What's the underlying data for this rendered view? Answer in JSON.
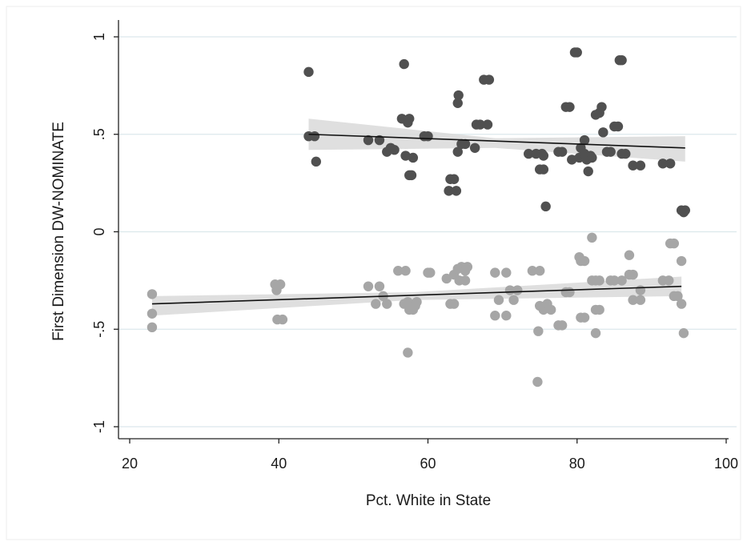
{
  "chart_data": {
    "type": "scatter",
    "title": "",
    "xlabel": "Pct. White in State",
    "ylabel": "First Dimension DW-NOMINATE",
    "xlim": [
      19,
      101
    ],
    "ylim": [
      -1.05,
      1.05
    ],
    "xticks": [
      20,
      40,
      60,
      80,
      100
    ],
    "xtick_labels": [
      "20",
      "40",
      "60",
      "80",
      "100"
    ],
    "yticks": [
      -1,
      -0.5,
      0,
      0.5,
      1
    ],
    "ytick_labels": [
      "-1",
      "-.5",
      "0",
      ".5",
      "1"
    ],
    "grid": "horizontal",
    "legend": "none",
    "colors": {
      "series_1": "#505050",
      "series_2": "#a6a6a6",
      "fit_line": "#111111",
      "ci_band": "#d9d9d9",
      "grid": "#dce8ec"
    },
    "series": [
      {
        "points": [
          [
            44,
            0.82
          ],
          [
            44,
            0.49
          ],
          [
            44.8,
            0.49
          ],
          [
            45,
            0.36
          ],
          [
            52,
            0.47
          ],
          [
            53.5,
            0.47
          ],
          [
            54.5,
            0.41
          ],
          [
            55,
            0.43
          ],
          [
            55.5,
            0.42
          ],
          [
            56.5,
            0.58
          ],
          [
            56.8,
            0.86
          ],
          [
            57,
            0.39
          ],
          [
            57.3,
            0.56
          ],
          [
            57.5,
            0.58
          ],
          [
            57.5,
            0.29
          ],
          [
            57.8,
            0.29
          ],
          [
            58,
            0.38
          ],
          [
            59.5,
            0.49
          ],
          [
            60,
            0.49
          ],
          [
            62.8,
            0.21
          ],
          [
            63,
            0.27
          ],
          [
            63.5,
            0.27
          ],
          [
            63.8,
            0.21
          ],
          [
            64,
            0.41
          ],
          [
            64,
            0.66
          ],
          [
            64.1,
            0.7
          ],
          [
            64.5,
            0.45
          ],
          [
            65,
            0.45
          ],
          [
            66.3,
            0.43
          ],
          [
            66.5,
            0.55
          ],
          [
            67,
            0.55
          ],
          [
            67.5,
            0.78
          ],
          [
            68,
            0.55
          ],
          [
            68.2,
            0.78
          ],
          [
            73.5,
            0.4
          ],
          [
            74.5,
            0.4
          ],
          [
            75,
            0.32
          ],
          [
            75.3,
            0.4
          ],
          [
            75.5,
            0.32
          ],
          [
            75.5,
            0.39
          ],
          [
            75.8,
            0.13
          ],
          [
            77.5,
            0.41
          ],
          [
            78,
            0.41
          ],
          [
            78.5,
            0.64
          ],
          [
            79,
            0.64
          ],
          [
            79.3,
            0.37
          ],
          [
            79.7,
            0.92
          ],
          [
            80,
            0.92
          ],
          [
            80.3,
            0.38
          ],
          [
            80.5,
            0.43
          ],
          [
            81,
            0.47
          ],
          [
            81,
            0.4
          ],
          [
            81.3,
            0.37
          ],
          [
            81.5,
            0.31
          ],
          [
            81.8,
            0.39
          ],
          [
            82,
            0.38
          ],
          [
            82.5,
            0.6
          ],
          [
            83,
            0.61
          ],
          [
            83.3,
            0.64
          ],
          [
            83.5,
            0.51
          ],
          [
            84,
            0.41
          ],
          [
            84.5,
            0.41
          ],
          [
            85,
            0.54
          ],
          [
            85.5,
            0.54
          ],
          [
            85.7,
            0.88
          ],
          [
            86,
            0.88
          ],
          [
            86,
            0.4
          ],
          [
            86.5,
            0.4
          ],
          [
            87.5,
            0.34
          ],
          [
            88.5,
            0.34
          ],
          [
            91.5,
            0.35
          ],
          [
            92.5,
            0.35
          ],
          [
            94,
            0.11
          ],
          [
            94.3,
            0.1
          ],
          [
            94.5,
            0.11
          ]
        ],
        "fit": {
          "x": [
            44,
            94.5
          ],
          "y": [
            0.5,
            0.43
          ]
        },
        "ci": {
          "x": [
            44,
            69,
            94.5
          ],
          "upper": [
            0.58,
            0.48,
            0.49
          ],
          "lower": [
            0.42,
            0.43,
            0.36
          ]
        }
      },
      {
        "points": [
          [
            23,
            -0.32
          ],
          [
            23,
            -0.42
          ],
          [
            23,
            -0.49
          ],
          [
            39.5,
            -0.27
          ],
          [
            39.7,
            -0.3
          ],
          [
            40.2,
            -0.27
          ],
          [
            39.8,
            -0.45
          ],
          [
            40.5,
            -0.45
          ],
          [
            52,
            -0.28
          ],
          [
            53,
            -0.37
          ],
          [
            53.5,
            -0.28
          ],
          [
            54,
            -0.33
          ],
          [
            54.5,
            -0.37
          ],
          [
            56,
            -0.2
          ],
          [
            57,
            -0.2
          ],
          [
            56.8,
            -0.37
          ],
          [
            57.3,
            -0.36
          ],
          [
            57.5,
            -0.4
          ],
          [
            58,
            -0.4
          ],
          [
            58.3,
            -0.38
          ],
          [
            58.5,
            -0.36
          ],
          [
            57.3,
            -0.62
          ],
          [
            60,
            -0.21
          ],
          [
            60.3,
            -0.21
          ],
          [
            62.5,
            -0.24
          ],
          [
            63,
            -0.37
          ],
          [
            63.5,
            -0.37
          ],
          [
            63.5,
            -0.22
          ],
          [
            64,
            -0.19
          ],
          [
            64.2,
            -0.25
          ],
          [
            64.5,
            -0.18
          ],
          [
            65,
            -0.2
          ],
          [
            65,
            -0.25
          ],
          [
            65.3,
            -0.18
          ],
          [
            69,
            -0.21
          ],
          [
            69,
            -0.43
          ],
          [
            69.5,
            -0.35
          ],
          [
            70.5,
            -0.21
          ],
          [
            71,
            -0.3
          ],
          [
            71.5,
            -0.35
          ],
          [
            72,
            -0.3
          ],
          [
            70.5,
            -0.43
          ],
          [
            74,
            -0.2
          ],
          [
            75,
            -0.2
          ],
          [
            74.8,
            -0.51
          ],
          [
            75,
            -0.38
          ],
          [
            75.5,
            -0.4
          ],
          [
            76,
            -0.37
          ],
          [
            76.5,
            -0.4
          ],
          [
            74.7,
            -0.77
          ],
          [
            77.5,
            -0.48
          ],
          [
            78,
            -0.48
          ],
          [
            78.5,
            -0.31
          ],
          [
            79,
            -0.31
          ],
          [
            80.3,
            -0.13
          ],
          [
            80.5,
            -0.15
          ],
          [
            81,
            -0.15
          ],
          [
            80.5,
            -0.44
          ],
          [
            81,
            -0.44
          ],
          [
            82,
            -0.03
          ],
          [
            82,
            -0.25
          ],
          [
            82.5,
            -0.25
          ],
          [
            83,
            -0.25
          ],
          [
            82.5,
            -0.4
          ],
          [
            83,
            -0.4
          ],
          [
            82.5,
            -0.52
          ],
          [
            84.5,
            -0.25
          ],
          [
            85,
            -0.25
          ],
          [
            86,
            -0.25
          ],
          [
            87,
            -0.12
          ],
          [
            87,
            -0.22
          ],
          [
            87.5,
            -0.22
          ],
          [
            87.5,
            -0.35
          ],
          [
            88.5,
            -0.35
          ],
          [
            88.5,
            -0.3
          ],
          [
            91.5,
            -0.25
          ],
          [
            92.3,
            -0.25
          ],
          [
            92.5,
            -0.06
          ],
          [
            93,
            -0.06
          ],
          [
            93,
            -0.33
          ],
          [
            93.5,
            -0.33
          ],
          [
            94,
            -0.15
          ],
          [
            94,
            -0.37
          ],
          [
            94.3,
            -0.52
          ]
        ],
        "fit": {
          "x": [
            23,
            94
          ],
          "y": [
            -0.37,
            -0.28
          ]
        },
        "ci": {
          "x": [
            23,
            58,
            94
          ],
          "upper": [
            -0.33,
            -0.31,
            -0.23
          ],
          "lower": [
            -0.43,
            -0.35,
            -0.33
          ]
        }
      }
    ]
  }
}
